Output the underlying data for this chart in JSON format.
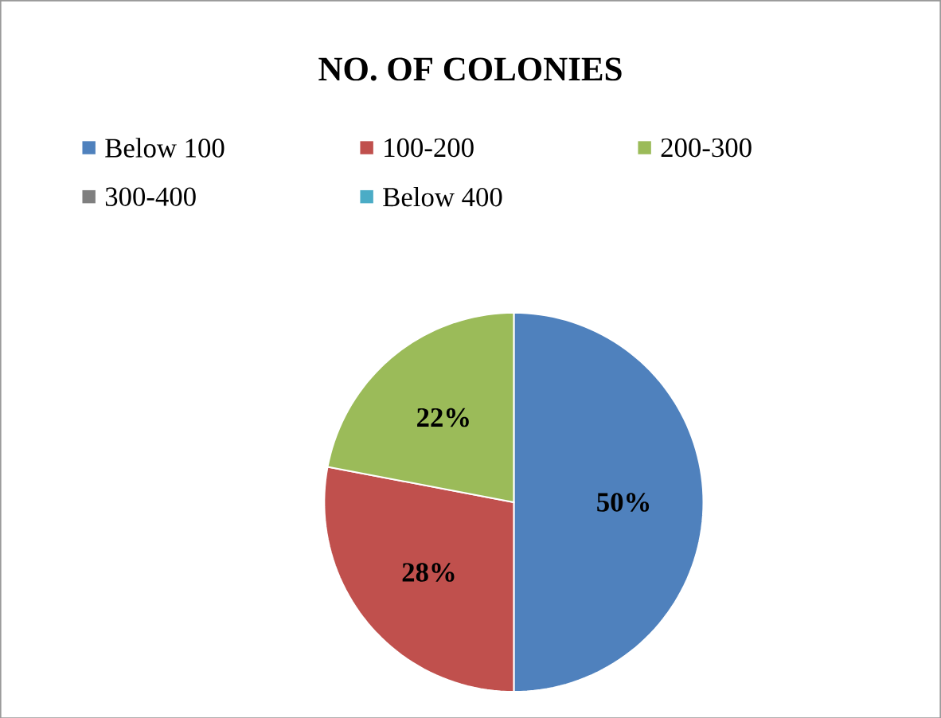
{
  "chart_data": {
    "type": "pie",
    "title": "NO. OF COLONIES",
    "categories": [
      "Below 100",
      "100-200",
      "200-300",
      "300-400",
      "Below 400"
    ],
    "values": [
      50,
      28,
      22,
      0,
      0
    ],
    "colors": [
      "#4f81bd",
      "#c0504d",
      "#9bbb59",
      "#7f7f7f",
      "#4bacc6"
    ],
    "value_labels": [
      "50%",
      "28%",
      "22%",
      null,
      null
    ],
    "legend": "top"
  }
}
